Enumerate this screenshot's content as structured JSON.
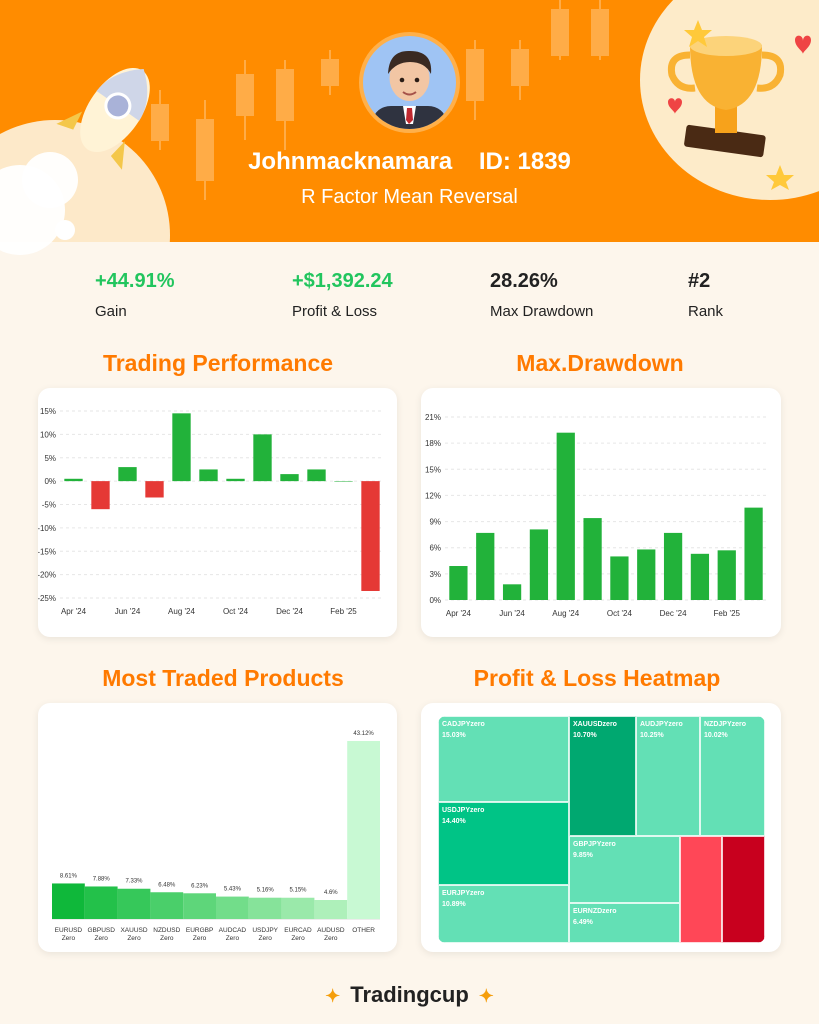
{
  "header": {
    "username": "Johnmacknamara",
    "id_label": "ID: 1839",
    "strategy": "R Factor Mean Reversal"
  },
  "stats": [
    {
      "value": "+44.91%",
      "label": "Gain",
      "color": "#22c55e"
    },
    {
      "value": "+$1,392.24",
      "label": "Profit & Loss",
      "color": "#22c55e"
    },
    {
      "value": "28.26%",
      "label": "Max Drawdown",
      "color": "#222222"
    },
    {
      "value": "#2",
      "label": "Rank",
      "color": "#222222"
    }
  ],
  "titles": {
    "performance": "Trading Performance",
    "drawdown": "Max.Drawdown",
    "products": "Most Traded Products",
    "heatmap": "Profit & Loss Heatmap"
  },
  "footer": {
    "brand": "Tradingcup"
  },
  "colors": {
    "accent": "#ff8c00",
    "positive": "#22b23a",
    "negative": "#e53935"
  },
  "chart_data": [
    {
      "type": "bar",
      "title": "Trading Performance",
      "x_ticks": [
        "Apr '24",
        "Jun '24",
        "Aug '24",
        "Oct '24",
        "Dec '24",
        "Feb '25"
      ],
      "y_ticks": [
        "15%",
        "10%",
        "5%",
        "0%",
        "-5%",
        "-10%",
        "-15%",
        "-20%",
        "-25%"
      ],
      "ylim": [
        -25,
        15
      ],
      "values": [
        0.5,
        -6,
        3,
        -3.5,
        14.5,
        2.5,
        0.5,
        10,
        1.5,
        2.5,
        0,
        -23.5
      ],
      "grid": true
    },
    {
      "type": "bar",
      "title": "Max.Drawdown",
      "x_ticks": [
        "Apr '24",
        "Jun '24",
        "Aug '24",
        "Oct '24",
        "Dec '24",
        "Feb '25"
      ],
      "y_ticks": [
        "21%",
        "18%",
        "15%",
        "12%",
        "9%",
        "6%",
        "3%",
        "0%"
      ],
      "ylim": [
        0,
        21
      ],
      "values": [
        3.9,
        7.7,
        1.8,
        8.1,
        19.2,
        9.4,
        5.0,
        5.8,
        7.7,
        5.3,
        5.7,
        10.6
      ],
      "grid": true
    },
    {
      "type": "bar",
      "title": "Most Traded Products",
      "categories": [
        {
          "line1": "EURUSD",
          "line2": "Zero"
        },
        {
          "line1": "GBPUSD",
          "line2": "Zero"
        },
        {
          "line1": "XAUUSD",
          "line2": "Zero"
        },
        {
          "line1": "NZDUSD",
          "line2": "Zero"
        },
        {
          "line1": "EURGBP",
          "line2": "Zero"
        },
        {
          "line1": "AUDCAD",
          "line2": "Zero"
        },
        {
          "line1": "USDJPY",
          "line2": "Zero"
        },
        {
          "line1": "EURCAD",
          "line2": "Zero"
        },
        {
          "line1": "AUDUSD",
          "line2": "Zero"
        },
        {
          "line1": "OTHER",
          "line2": ""
        }
      ],
      "values": [
        8.61,
        7.88,
        7.33,
        6.48,
        6.23,
        5.43,
        5.16,
        5.15,
        4.6,
        43.12
      ],
      "labels": [
        "8.61%",
        "7.88%",
        "7.33%",
        "6.48%",
        "6.23%",
        "5.43%",
        "5.16%",
        "5.15%",
        "4.6%",
        "43.12%"
      ],
      "colors": [
        "#0fb83a",
        "#23c14a",
        "#36c85a",
        "#4acf6a",
        "#5ed67a",
        "#72dd8a",
        "#86e39a",
        "#9ae9aa",
        "#aef0ba",
        "#c8f9d3"
      ]
    },
    {
      "type": "heatmap",
      "title": "Profit & Loss Heatmap",
      "cells": [
        {
          "name": "CADJPYzero",
          "value": "15.03%",
          "color": "#63e0b5"
        },
        {
          "name": "USDJPYzero",
          "value": "14.40%",
          "color": "#00c486"
        },
        {
          "name": "EURJPYzero",
          "value": "10.89%",
          "color": "#63e0b5"
        },
        {
          "name": "XAUUSDzero",
          "value": "10.70%",
          "color": "#00a870"
        },
        {
          "name": "AUDJPYzero",
          "value": "10.25%",
          "color": "#63e0b5"
        },
        {
          "name": "NZDJPYzero",
          "value": "10.02%",
          "color": "#63e0b5"
        },
        {
          "name": "GBPJPYzero",
          "value": "9.85%",
          "color": "#63e0b5"
        },
        {
          "name": "EURNZDzero",
          "value": "6.49%",
          "color": "#63e0b5"
        },
        {
          "name": "",
          "value": "",
          "color": "#ff4757"
        },
        {
          "name": "",
          "value": "",
          "color": "#c8001e"
        }
      ]
    }
  ]
}
